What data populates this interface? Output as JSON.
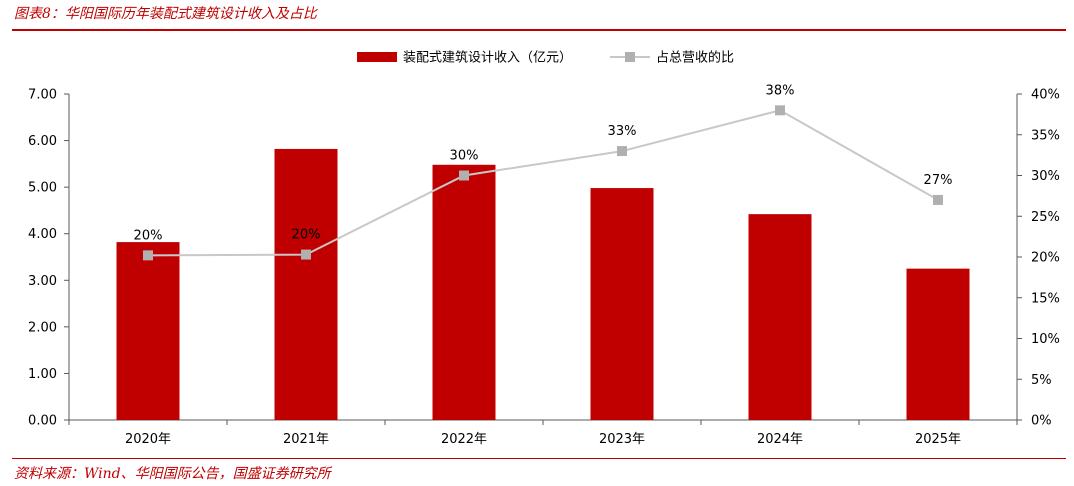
{
  "figure_title": "图表8：华阳国际历年装配式建筑设计收入及占比",
  "source_note": "资料来源：Wind、华阳国际公告，国盛证券研究所",
  "colors": {
    "bar": "#c00000",
    "line": "#c8c8c8",
    "marker": "#b0b0b0",
    "accent": "#c00000"
  },
  "chart_data": {
    "type": "bar",
    "categories": [
      "2020年",
      "2021年",
      "2022年",
      "2023年",
      "2024年",
      "2025年"
    ],
    "series": [
      {
        "name": "装配式建筑设计收入（亿元）",
        "type": "bar",
        "axis": "left",
        "values": [
          3.82,
          5.82,
          5.48,
          4.98,
          4.42,
          3.25
        ]
      },
      {
        "name": "占总营收的比",
        "type": "line",
        "axis": "right",
        "values": [
          0.202,
          0.203,
          0.3,
          0.33,
          0.38,
          0.27
        ],
        "labels": [
          "20%",
          "20%",
          "30%",
          "33%",
          "38%",
          "27%"
        ]
      }
    ],
    "left_axis": {
      "ylim": [
        0,
        7
      ],
      "ticks": [
        "0.00",
        "1.00",
        "2.00",
        "3.00",
        "4.00",
        "5.00",
        "6.00",
        "7.00"
      ]
    },
    "right_axis": {
      "ylim": [
        0,
        0.4
      ],
      "ticks": [
        "0%",
        "5%",
        "10%",
        "15%",
        "20%",
        "25%",
        "30%",
        "35%",
        "40%"
      ]
    },
    "legend": "top-center",
    "grid": false
  }
}
